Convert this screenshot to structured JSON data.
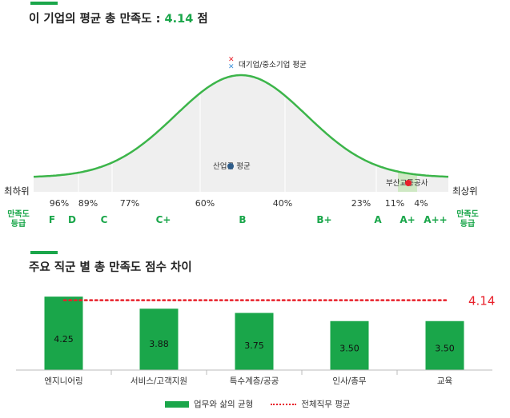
{
  "section1": {
    "title_prefix": "이 기업의 평균 총 만족도 :",
    "score": "4.14",
    "score_unit": "점",
    "legend_marker": "대기업/중소기업 평균",
    "industry_avg_label": "산업군 평균",
    "company_label": "부산교통공사",
    "left_end": "최하위",
    "right_end": "최상위",
    "sat_label_left": [
      "만족도",
      "등급"
    ],
    "sat_label_right": [
      "만족도",
      "등급"
    ],
    "percentiles": [
      "96%",
      "89%",
      "77%",
      "60%",
      "40%",
      "23%",
      "11%",
      "4%"
    ],
    "grades": [
      "F",
      "D",
      "C",
      "C+",
      "B",
      "B+",
      "A",
      "A+",
      "A++"
    ]
  },
  "chart_data": {
    "type": "bar",
    "title": "주요 직군 별 총 만족도 점수 차이",
    "categories": [
      "엔지니어링",
      "서비스/고객지원",
      "특수계층/공공",
      "인사/총무",
      "교육"
    ],
    "series": [
      {
        "name": "업무와 삶의 균형",
        "values": [
          4.25,
          3.88,
          3.75,
          3.5,
          3.5
        ],
        "color": "#1aa64a"
      }
    ],
    "reference_line": {
      "name": "전체직무 평균",
      "value": 4.14,
      "label": "4.14",
      "color": "#e8202a"
    },
    "ylim": [
      2.0,
      4.4
    ],
    "legend_position": "bottom-center"
  }
}
